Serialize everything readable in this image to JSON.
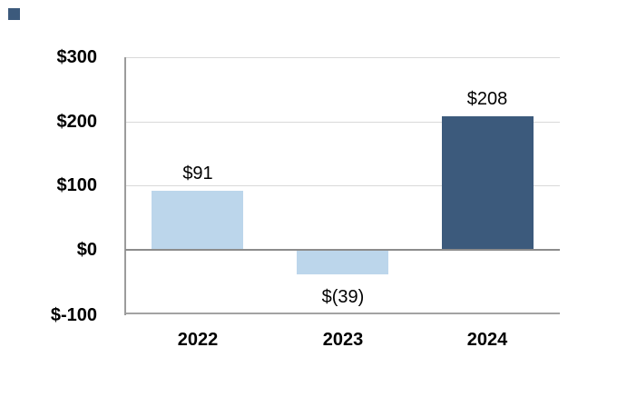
{
  "page": {
    "background": "#FFFFFF"
  },
  "decorations": {
    "corner_square_color": "#3C5A7C"
  },
  "styles": {
    "grid_color": "#D9D9D9",
    "zero_line_color": "#8C8C8C",
    "axis_line_color": "#9C9C9C",
    "bottom_line_color": "#A3A3A3",
    "text_color": "#000000",
    "bar_light_blue": "#BCD6EB",
    "bar_dark_navy": "#3C5A7C"
  },
  "chart_data": {
    "type": "bar",
    "title": "",
    "xlabel": "",
    "ylabel": "",
    "categories": [
      "2022",
      "2023",
      "2024"
    ],
    "values": [
      91,
      -39,
      208
    ],
    "value_labels": [
      "$91",
      "$(39)",
      "$208"
    ],
    "bar_colors": [
      "#BCD6EB",
      "#BCD6EB",
      "#3C5A7C"
    ],
    "y_axis": {
      "range": [
        -100,
        300
      ],
      "ticks": [
        {
          "label": "$300",
          "value": 300
        },
        {
          "label": "$200",
          "value": 200
        },
        {
          "label": "$100",
          "value": 100
        },
        {
          "label": "$0",
          "value": 0
        },
        {
          "label": "$-100",
          "value": -100
        }
      ]
    },
    "grid": "horizontal gridlines every $100, no right or top frame emphasis",
    "legend": "none"
  }
}
